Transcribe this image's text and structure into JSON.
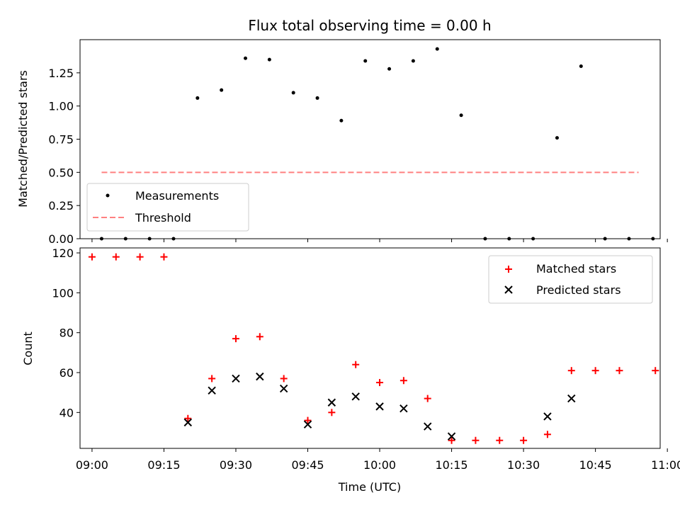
{
  "chart_data": [
    {
      "type": "scatter",
      "title": "Flux total observing time = 0.00 h",
      "ylabel": "Matched/Predicted stars",
      "xlim": [
        -2.5,
        118.5
      ],
      "ylim": [
        0,
        1.5
      ],
      "yticks": [
        "0.00",
        "0.25",
        "0.50",
        "0.75",
        "1.00",
        "1.25"
      ],
      "ytick_values": [
        0,
        0.25,
        0.5,
        0.75,
        1.0,
        1.25
      ],
      "legend": {
        "position": "lower-left",
        "entries": [
          "Measurements",
          "Threshold"
        ]
      },
      "series": [
        {
          "name": "Measurements",
          "color": "#000000",
          "x": [
            2,
            7,
            12,
            17,
            22,
            27,
            32,
            37,
            42,
            47,
            52,
            57,
            62,
            67,
            72,
            77,
            82,
            87,
            92,
            97,
            102,
            107,
            112,
            117
          ],
          "y": [
            0,
            0,
            0,
            0,
            1.06,
            1.12,
            1.36,
            1.35,
            1.1,
            1.06,
            0.89,
            1.34,
            1.28,
            1.34,
            1.43,
            0.93,
            0,
            0,
            0,
            0.76,
            1.3,
            0,
            0,
            0
          ]
        },
        {
          "name": "Threshold",
          "color": "#ff8080",
          "x": [
            2,
            114
          ],
          "y": [
            0.5,
            0.5
          ]
        }
      ]
    },
    {
      "type": "scatter",
      "xlabel": "Time (UTC)",
      "ylabel": "Count",
      "xlim": [
        -2.5,
        118.5
      ],
      "ylim": [
        22,
        122.5
      ],
      "xticks": [
        "09:00",
        "09:15",
        "09:30",
        "09:45",
        "10:00",
        "10:15",
        "10:30",
        "10:45",
        "11:00"
      ],
      "xtick_values": [
        0,
        15,
        30,
        45,
        60,
        75,
        90,
        105,
        120
      ],
      "yticks": [
        "40",
        "60",
        "80",
        "100",
        "120"
      ],
      "ytick_values": [
        40,
        60,
        80,
        100,
        120
      ],
      "legend": {
        "position": "upper-right",
        "entries": [
          "Matched stars",
          "Predicted stars"
        ]
      },
      "series": [
        {
          "name": "Matched stars",
          "color": "#ff0000",
          "x": [
            0,
            5,
            10,
            15,
            20,
            25,
            30,
            35,
            40,
            45,
            50,
            55,
            60,
            65,
            70,
            75,
            80,
            85,
            90,
            95,
            100,
            105,
            110,
            117.5
          ],
          "y": [
            118,
            118,
            118,
            118,
            37,
            57,
            77,
            78,
            57,
            36,
            40,
            64,
            55,
            56,
            47,
            26,
            26,
            26,
            26,
            29,
            61,
            61,
            61,
            61
          ]
        },
        {
          "name": "Predicted stars",
          "color": "#000000",
          "x": [
            20,
            25,
            30,
            35,
            40,
            45,
            50,
            55,
            60,
            65,
            70,
            75,
            95,
            100
          ],
          "y": [
            35,
            51,
            57,
            58,
            52,
            34,
            45,
            48,
            43,
            42,
            33,
            28,
            38,
            47
          ]
        }
      ]
    }
  ]
}
